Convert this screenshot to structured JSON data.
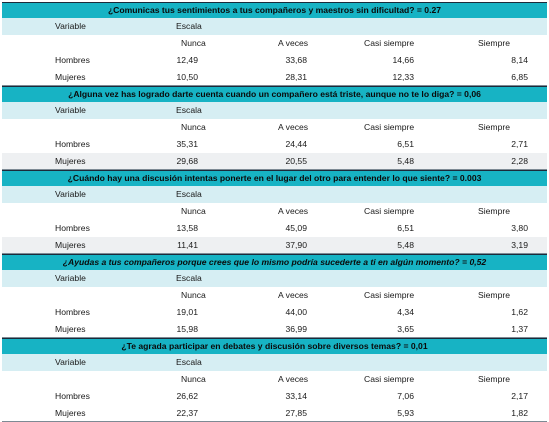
{
  "headers": {
    "variable": "Variable",
    "escala": "Escala",
    "cols": [
      "Nunca",
      "A veces",
      "Casi siempre",
      "Siempre"
    ]
  },
  "questions": [
    {
      "title": "¿Comunicas tus sentimientos a tus compañeros y maestros sin dificultad? = 0.27",
      "italic": false,
      "rows": [
        {
          "label": "Hombres",
          "values": [
            "12,49",
            "33,68",
            "14,66",
            "8,14"
          ]
        },
        {
          "label": "Mujeres",
          "values": [
            "10,50",
            "28,31",
            "12,33",
            "6,85"
          ]
        }
      ]
    },
    {
      "title": "¿Alguna vez has logrado darte cuenta cuando un compañero está triste, aunque no te lo diga? = 0,06",
      "italic": false,
      "rows": [
        {
          "label": "Hombres",
          "values": [
            "35,31",
            "24,44",
            "6,51",
            "2,71"
          ]
        },
        {
          "label": "Mujeres",
          "values": [
            "29,68",
            "20,55",
            "5,48",
            "2,28"
          ]
        }
      ]
    },
    {
      "title": "¿Cuándo hay una discusión intentas ponerte en el lugar del otro para entender lo que siente? = 0.003",
      "italic": false,
      "rows": [
        {
          "label": "Hombres",
          "values": [
            "13,58",
            "45,09",
            "6,51",
            "3,80"
          ]
        },
        {
          "label": "Mujeres",
          "values": [
            "11,41",
            "37,90",
            "5,48",
            "3,19"
          ]
        }
      ]
    },
    {
      "title": "¿Ayudas a tus compañeros porque crees que lo mismo podría sucederte a ti en algún momento? = 0,52",
      "italic": true,
      "rows": [
        {
          "label": "Hombres",
          "values": [
            "19,01",
            "44,00",
            "4,34",
            "1,62"
          ]
        },
        {
          "label": "Mujeres",
          "values": [
            "15,98",
            "36,99",
            "3,65",
            "1,37"
          ]
        }
      ]
    },
    {
      "title": "¿Te agrada participar en debates y discusión sobre diversos temas? = 0,01",
      "italic": false,
      "rows": [
        {
          "label": "Hombres",
          "values": [
            "26,62",
            "33,14",
            "7,06",
            "2,17"
          ]
        },
        {
          "label": "Mujeres",
          "values": [
            "22,37",
            "27,85",
            "5,93",
            "1,82"
          ]
        }
      ]
    }
  ],
  "colors": {
    "question_band": "#17b3c4",
    "variable_band": "#d6eef3",
    "shaded_row": "#eef0f2"
  }
}
